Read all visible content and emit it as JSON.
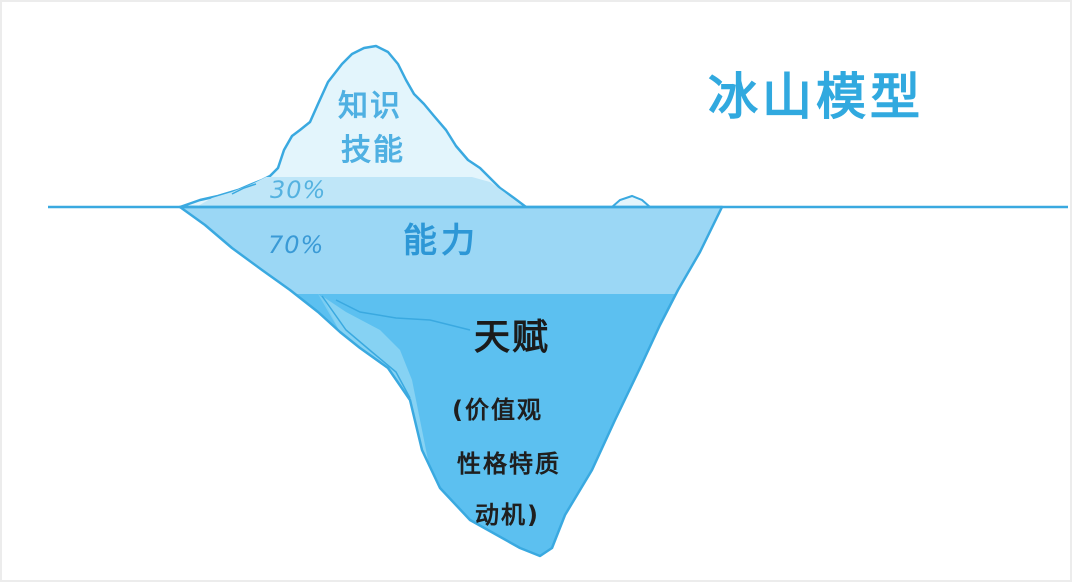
{
  "title": "冰山模型",
  "tip": {
    "line1": "知识",
    "line2": "技能",
    "percent": "30%"
  },
  "middle": {
    "percent": "70%",
    "label": "能力"
  },
  "bottom": {
    "label": "天赋",
    "detail_line1": "(价值观",
    "detail_line2": "性格特质",
    "detail_line3": "动机)"
  },
  "colors": {
    "title": "#31a9df",
    "water_line": "#3aa9e0",
    "tip_fill": "#e3f5fc",
    "ability_fill": "#9bd7f5",
    "talent_fill": "#5cc0f0",
    "outline": "#3aa9e0"
  }
}
